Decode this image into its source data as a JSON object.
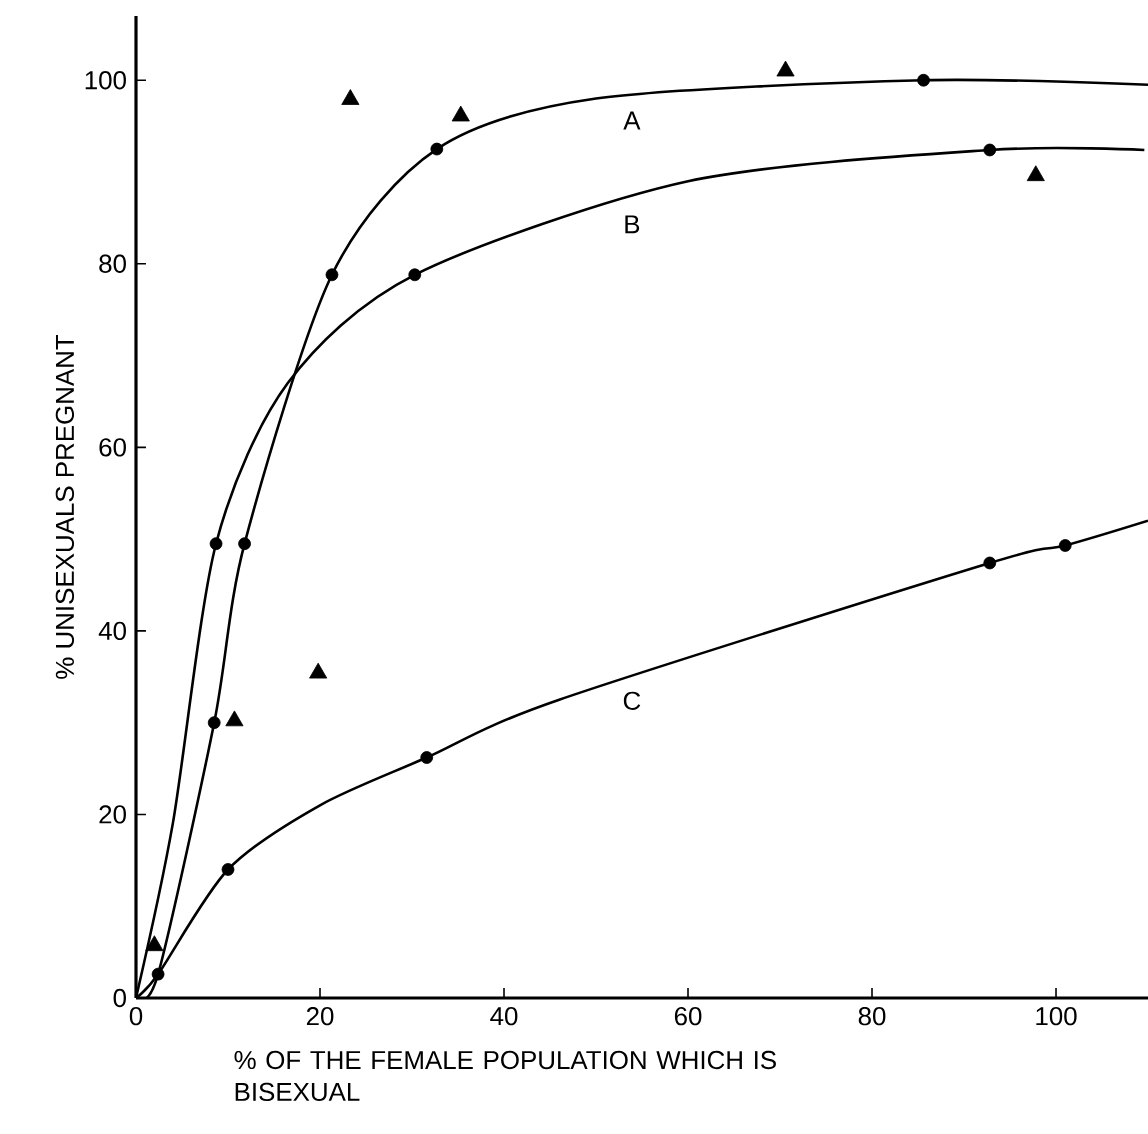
{
  "chart_data": {
    "type": "line",
    "xlabel": "% OF THE FEMALE POPULATION WHICH IS BISEXUAL",
    "ylabel": "% UNISEXUALS PREGNANT",
    "xlim": [
      0,
      110
    ],
    "ylim": [
      0,
      107
    ],
    "xticks": [
      0,
      20,
      40,
      60,
      80,
      100
    ],
    "yticks": [
      0,
      20,
      40,
      60,
      80,
      100
    ],
    "series": [
      {
        "name": "A",
        "color": "#000000",
        "marker": "none",
        "x": [
          0,
          2.4,
          8.5,
          11.8,
          21.3,
          32.7,
          50,
          85.6,
          110
        ],
        "values": [
          0,
          2.6,
          30,
          49.5,
          78.8,
          92.5,
          98,
          100,
          99.5
        ]
      },
      {
        "name": "B",
        "color": "#000000",
        "marker": "none",
        "x": [
          0,
          4,
          8.7,
          16.5,
          30.3,
          60,
          92.8,
          109.6
        ],
        "values": [
          0,
          19,
          49.5,
          67,
          78.8,
          89,
          92.4,
          92.4
        ]
      },
      {
        "name": "C",
        "color": "#000000",
        "marker": "none",
        "x": [
          0,
          2.4,
          10,
          20,
          31.6,
          46,
          92.8,
          101,
          110
        ],
        "values": [
          0,
          2.6,
          14,
          21,
          26.2,
          32.5,
          47.4,
          49.3,
          52
        ]
      },
      {
        "type": "scatter",
        "color": "#000000",
        "marker": "circle",
        "x": [
          2.4,
          8.5,
          11.8,
          21.3,
          32.7,
          85.6
        ],
        "values": [
          2.6,
          30,
          49.5,
          78.8,
          92.5,
          100
        ]
      },
      {
        "type": "scatter",
        "color": "#000000",
        "marker": "circle",
        "x": [
          8.7,
          30.3,
          92.8
        ],
        "values": [
          49.5,
          78.8,
          92.4
        ]
      },
      {
        "type": "scatter",
        "color": "#000000",
        "marker": "circle",
        "x": [
          10,
          31.6,
          92.8,
          101
        ],
        "values": [
          14,
          26.2,
          47.4,
          49.3
        ]
      },
      {
        "type": "scatter",
        "color": "#000000",
        "marker": "triangle",
        "x": [
          2,
          10.7,
          19.8,
          23.3,
          35.3,
          70.6,
          97.8
        ],
        "values": [
          5.7,
          30.2,
          35.4,
          97.9,
          96.1,
          101,
          89.6
        ]
      }
    ]
  }
}
